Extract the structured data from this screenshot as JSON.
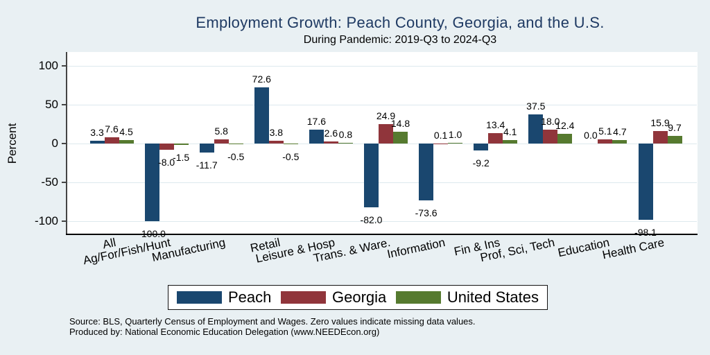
{
  "title": "Employment Growth: Peach County, Georgia, and the U.S.",
  "subtitle": "During Pandemic: 2019-Q3 to 2024-Q3",
  "chart_data": {
    "type": "bar",
    "title": "Employment Growth: Peach County, Georgia, and the U.S.",
    "subtitle": "During Pandemic: 2019-Q3 to 2024-Q3",
    "categories": [
      "All",
      "Ag/For/Fish/Hunt",
      "Manufacturing",
      "Retail",
      "Leisure & Hosp",
      "Trans. & Ware.",
      "Information",
      "Fin & Ins",
      "Prof, Sci, Tech",
      "Education",
      "Health Care"
    ],
    "series": [
      {
        "name": "Peach",
        "color": "#1a476f",
        "values": [
          3.3,
          -100.0,
          -11.7,
          72.6,
          17.6,
          -82.0,
          -73.6,
          -9.2,
          37.5,
          0.0,
          -98.1
        ]
      },
      {
        "name": "Georgia",
        "color": "#90353b",
        "values": [
          7.6,
          -8.0,
          5.8,
          3.8,
          2.6,
          24.9,
          0.1,
          13.4,
          18.0,
          5.1,
          15.9
        ]
      },
      {
        "name": "United States",
        "color": "#567a2f",
        "values": [
          4.5,
          -1.5,
          -0.5,
          -0.5,
          0.8,
          14.8,
          1.0,
          4.1,
          12.4,
          4.7,
          9.7
        ]
      }
    ],
    "xlabel": "",
    "ylabel": "Percent",
    "yticks": [
      100,
      50,
      0,
      -50,
      -100
    ],
    "ylim": [
      -117,
      118
    ],
    "grid": true,
    "value_labels": true,
    "legend_position": "bottom"
  },
  "colors": {
    "background": "#e9f0f3",
    "plot_background": "#ffffff",
    "gridline": "#dde9ee",
    "title_text": "#1f3a63",
    "axis_line": "#000000"
  },
  "footer": {
    "line1": "Source: BLS, Quarterly Census of Employment and Wages. Zero values indicate missing data values.",
    "line2": "Produced by: National Economic Education Delegation (www.NEEDEcon.org)"
  }
}
